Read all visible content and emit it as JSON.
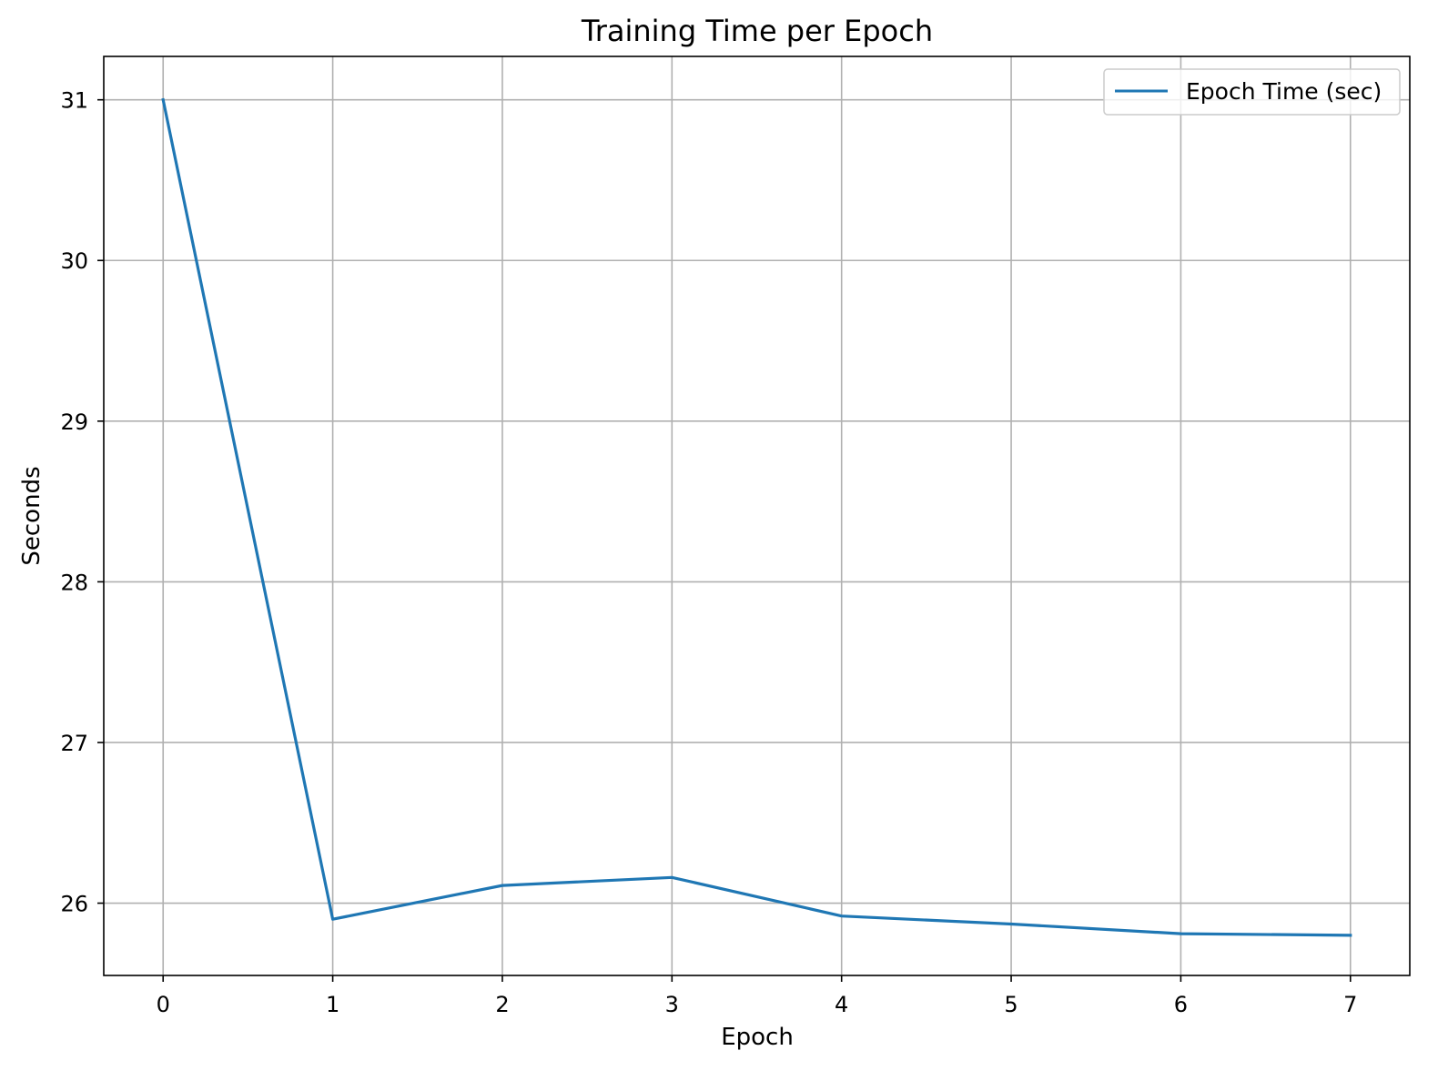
{
  "chart_data": {
    "type": "line",
    "title": "Training Time per Epoch",
    "xlabel": "Epoch",
    "ylabel": "Seconds",
    "x": [
      0,
      1,
      2,
      3,
      4,
      5,
      6,
      7
    ],
    "series": [
      {
        "name": "Epoch Time (sec)",
        "color": "#1f77b4",
        "values": [
          31.0,
          25.9,
          26.11,
          26.16,
          25.92,
          25.87,
          25.81,
          25.8
        ]
      }
    ],
    "xlim": [
      -0.35,
      7.35
    ],
    "ylim": [
      25.55,
      31.27
    ],
    "xticks": [
      0,
      1,
      2,
      3,
      4,
      5,
      6,
      7
    ],
    "yticks": [
      26,
      27,
      28,
      29,
      30,
      31
    ],
    "grid": true,
    "legend_position": "top-right"
  }
}
